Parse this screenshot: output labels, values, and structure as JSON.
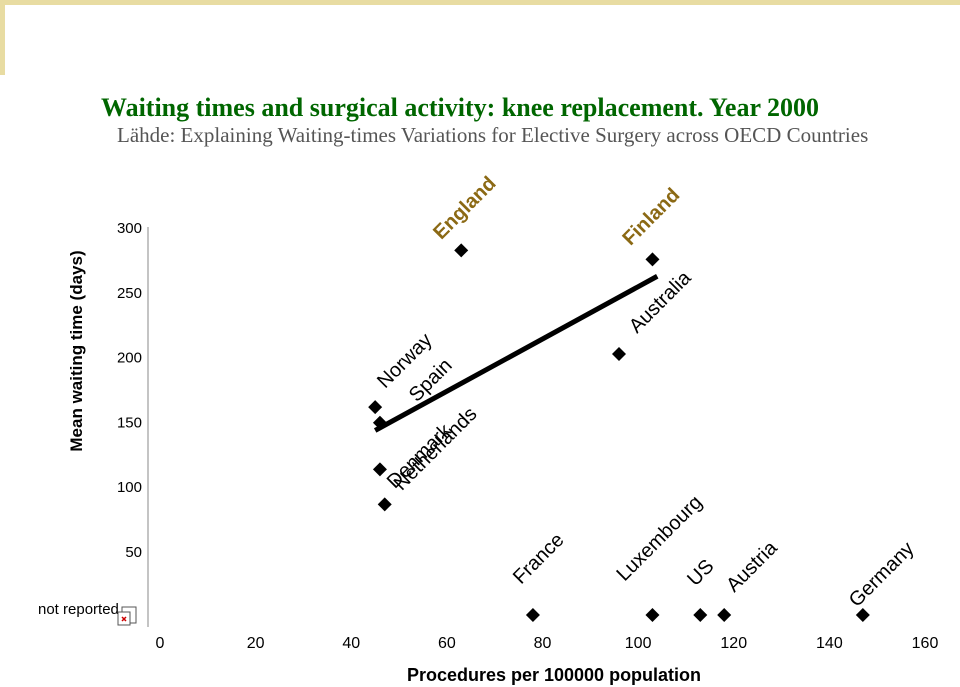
{
  "title": "Waiting times and surgical activity:  knee replacement. Year 2000",
  "source": "Lähde: Explaining Waiting-times Variations for Elective Surgery across OECD Countries",
  "not_reported_label": "not reported",
  "colors": {
    "title": "#006600",
    "highlight_label": "#8b6914",
    "source": "#555555",
    "accent_bar": "#e8dca2"
  },
  "chart_data": {
    "type": "scatter",
    "xlabel": "Procedures per 100000 population",
    "ylabel": "Mean waiting time (days)",
    "xlim": [
      0,
      160
    ],
    "ylim": [
      50,
      300
    ],
    "x_ticks": [
      "0",
      "20",
      "40",
      "60",
      "80",
      "100",
      "120",
      "140",
      "160"
    ],
    "y_ticks": [
      "300",
      "250",
      "200",
      "150",
      "100",
      "50"
    ],
    "grid": false,
    "points": [
      {
        "label": "England",
        "x": 63,
        "y": 282,
        "highlight": true
      },
      {
        "label": "Finland",
        "x": 103,
        "y": 275,
        "highlight": true
      },
      {
        "label": "Australia",
        "x": 96,
        "y": 202
      },
      {
        "label": "Norway",
        "x": 45,
        "y": 161
      },
      {
        "label": "Spain",
        "x": 46,
        "y": 149
      },
      {
        "label": "Denmark",
        "x": 46,
        "y": 113
      },
      {
        "label": "Netherlands",
        "x": 47,
        "y": 86
      },
      {
        "label": "France",
        "x": 78,
        "y": null
      },
      {
        "label": "Luxembourg",
        "x": 103,
        "y": null
      },
      {
        "label": "US",
        "x": 113,
        "y": null
      },
      {
        "label": "Austria",
        "x": 118,
        "y": null
      },
      {
        "label": "Germany",
        "x": 147,
        "y": null
      }
    ],
    "trendline": {
      "x": [
        45,
        104
      ],
      "y": [
        143,
        262
      ]
    }
  }
}
